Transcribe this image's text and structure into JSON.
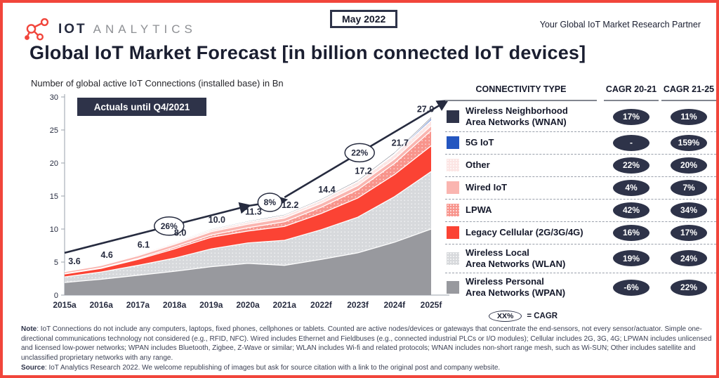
{
  "header": {
    "logo_iot": "IOT",
    "logo_analytics": "ANALYTICS",
    "date_badge": "May 2022",
    "tagline": "Your Global IoT Market Research Partner"
  },
  "title": "Global IoT Market Forecast [in billion connected IoT devices]",
  "chart": {
    "subtitle": "Number of global active IoT Connections (installed base) in Bn",
    "actuals_badge": "Actuals until Q4/2021"
  },
  "chart_data": {
    "type": "area",
    "stacked": true,
    "title": "Global IoT Market Forecast [in billion connected IoT devices]",
    "ylabel": "Number of global active IoT Connections (installed base) in Bn",
    "ylim": [
      0,
      30
    ],
    "yticks": [
      0,
      5,
      10,
      15,
      20,
      25,
      30
    ],
    "grid": false,
    "categories": [
      "2015a",
      "2016a",
      "2017a",
      "2018a",
      "2019a",
      "2020a",
      "2021a",
      "2022f",
      "2023f",
      "2024f",
      "2025f"
    ],
    "totals": [
      3.6,
      4.6,
      6.1,
      8.0,
      10.0,
      11.3,
      12.2,
      14.4,
      17.2,
      21.7,
      27.0
    ],
    "total_labels": [
      "3.6",
      "4.6",
      "6.1",
      "8.0",
      "10.0",
      "11.3",
      "12.2",
      "14.4",
      "17.2",
      "21.7",
      "27.0"
    ],
    "series": [
      {
        "name": "Wireless Personal Area Networks (WPAN)",
        "color": "#98999e",
        "texture": "flat",
        "values": [
          1.9,
          2.4,
          3.0,
          3.6,
          4.3,
          4.8,
          4.5,
          5.4,
          6.4,
          8.0,
          10.0
        ]
      },
      {
        "name": "Wireless Local Area Networks (WLAN)",
        "color": "#d7d9dc",
        "texture": "dots",
        "values": [
          0.85,
          1.1,
          1.5,
          2.0,
          2.7,
          3.1,
          3.8,
          4.5,
          5.4,
          6.9,
          8.7
        ]
      },
      {
        "name": "Legacy Cellular (2G/3G/4G)",
        "color": "#fb4334",
        "texture": "flat",
        "values": [
          0.45,
          0.55,
          0.9,
          1.4,
          1.75,
          1.8,
          2.1,
          2.45,
          2.9,
          3.35,
          3.9
        ]
      },
      {
        "name": "LPWA",
        "color": "#f8948c",
        "texture": "dots",
        "values": [
          0.04,
          0.08,
          0.15,
          0.25,
          0.35,
          0.5,
          0.7,
          0.94,
          1.26,
          1.68,
          2.3
        ]
      },
      {
        "name": "Wired IoT",
        "color": "#fab5b0",
        "texture": "flat",
        "values": [
          0.3,
          0.35,
          0.4,
          0.45,
          0.5,
          0.53,
          0.55,
          0.59,
          0.63,
          0.67,
          0.72
        ]
      },
      {
        "name": "Other",
        "color": "#fce5e4",
        "texture": "dots",
        "values": [
          0.1,
          0.12,
          0.18,
          0.22,
          0.28,
          0.33,
          0.4,
          0.48,
          0.58,
          0.69,
          0.83
        ]
      },
      {
        "name": "5G IoT",
        "color": "#2456c0",
        "texture": "flat",
        "values": [
          0.0,
          0.0,
          0.0,
          0.0,
          0.0,
          0.01,
          0.01,
          0.03,
          0.07,
          0.15,
          0.3
        ]
      },
      {
        "name": "Wireless Neighborhood Area Networks (WNAN)",
        "color": "#2e3349",
        "texture": "flat",
        "values": [
          0.02,
          0.03,
          0.04,
          0.06,
          0.08,
          0.09,
          0.1,
          0.11,
          0.12,
          0.13,
          0.15
        ]
      }
    ],
    "trend_segments": [
      {
        "start_year": 2015,
        "start_value": 6.4,
        "end_year": 2020,
        "end_value": 13.5,
        "cagr_label": "26%",
        "bubble_year": 2017.85
      },
      {
        "start_year": 2020,
        "start_value": 13.5,
        "end_year": 2021,
        "end_value": 14.4,
        "cagr_label": "8%",
        "bubble_year": 2020.6
      },
      {
        "start_year": 2021,
        "start_value": 14.8,
        "end_year": 2025.4,
        "end_value": 29.3,
        "cagr_label": "22%",
        "bubble_year": 2023.05
      }
    ],
    "annotation": "Actuals until Q4/2021"
  },
  "table": {
    "headers": [
      "CONNECTIVITY TYPE",
      "CAGR 20-21",
      "CAGR 21-25"
    ],
    "rows": [
      {
        "label_lines": [
          "Wireless Neighborhood",
          "Area Networks (WNAN)"
        ],
        "color": "#2e3349",
        "texture": "flat",
        "cagr_20_21": "17%",
        "cagr_21_25": "11%"
      },
      {
        "label_lines": [
          "5G IoT"
        ],
        "color": "#2456c0",
        "texture": "flat",
        "cagr_20_21": "-",
        "cagr_21_25": "159%"
      },
      {
        "label_lines": [
          "Other"
        ],
        "color": "#fce5e4",
        "texture": "dots",
        "cagr_20_21": "22%",
        "cagr_21_25": "20%"
      },
      {
        "label_lines": [
          "Wired IoT"
        ],
        "color": "#fab5b0",
        "texture": "flat",
        "cagr_20_21": "4%",
        "cagr_21_25": "7%"
      },
      {
        "label_lines": [
          "LPWA"
        ],
        "color": "#f8948c",
        "texture": "dots",
        "cagr_20_21": "42%",
        "cagr_21_25": "34%"
      },
      {
        "label_lines": [
          "Legacy Cellular (2G/3G/4G)"
        ],
        "color": "#fb4334",
        "texture": "flat",
        "cagr_20_21": "16%",
        "cagr_21_25": "17%"
      },
      {
        "label_lines": [
          "Wireless Local",
          "Area Networks (WLAN)"
        ],
        "color": "#d7d9dc",
        "texture": "dots",
        "cagr_20_21": "19%",
        "cagr_21_25": "24%"
      },
      {
        "label_lines": [
          "Wireless Personal",
          "Area Networks (WPAN)"
        ],
        "color": "#98999e",
        "texture": "flat",
        "cagr_20_21": "-6%",
        "cagr_21_25": "22%"
      }
    ],
    "cagr_legend_oval": "XX%",
    "cagr_legend_text": "= CAGR"
  },
  "notes": {
    "note_label": "Note",
    "note_text": ": IoT Connections do not include any computers, laptops, fixed phones, cellphones or tablets. Counted are active nodes/devices or gateways that concentrate the end-sensors, not every sensor/actuator. Simple one-directional communications technology not considered (e.g., RFID, NFC). Wired includes Ethernet and Fieldbuses (e.g., connected industrial PLCs or I/O modules); Cellular includes 2G, 3G, 4G;  LPWAN includes unlicensed and licensed low-power networks; WPAN includes Bluetooth, Zigbee, Z-Wave or similar; WLAN includes Wi-fi and related protocols; WNAN includes non-short range mesh, such as Wi-SUN; Other includes satellite and unclassified proprietary networks with any range.",
    "source_label": "Source",
    "source_text": ": IoT Analytics Research 2022. We welcome republishing of images but ask for source citation with a link to the original post and company website."
  },
  "colors": {
    "frame_red": "#f1453b",
    "navy": "#262b3f",
    "badge_navy": "#2e3349",
    "axis_text": "#262b3f",
    "trend_line": "#262b3f"
  }
}
